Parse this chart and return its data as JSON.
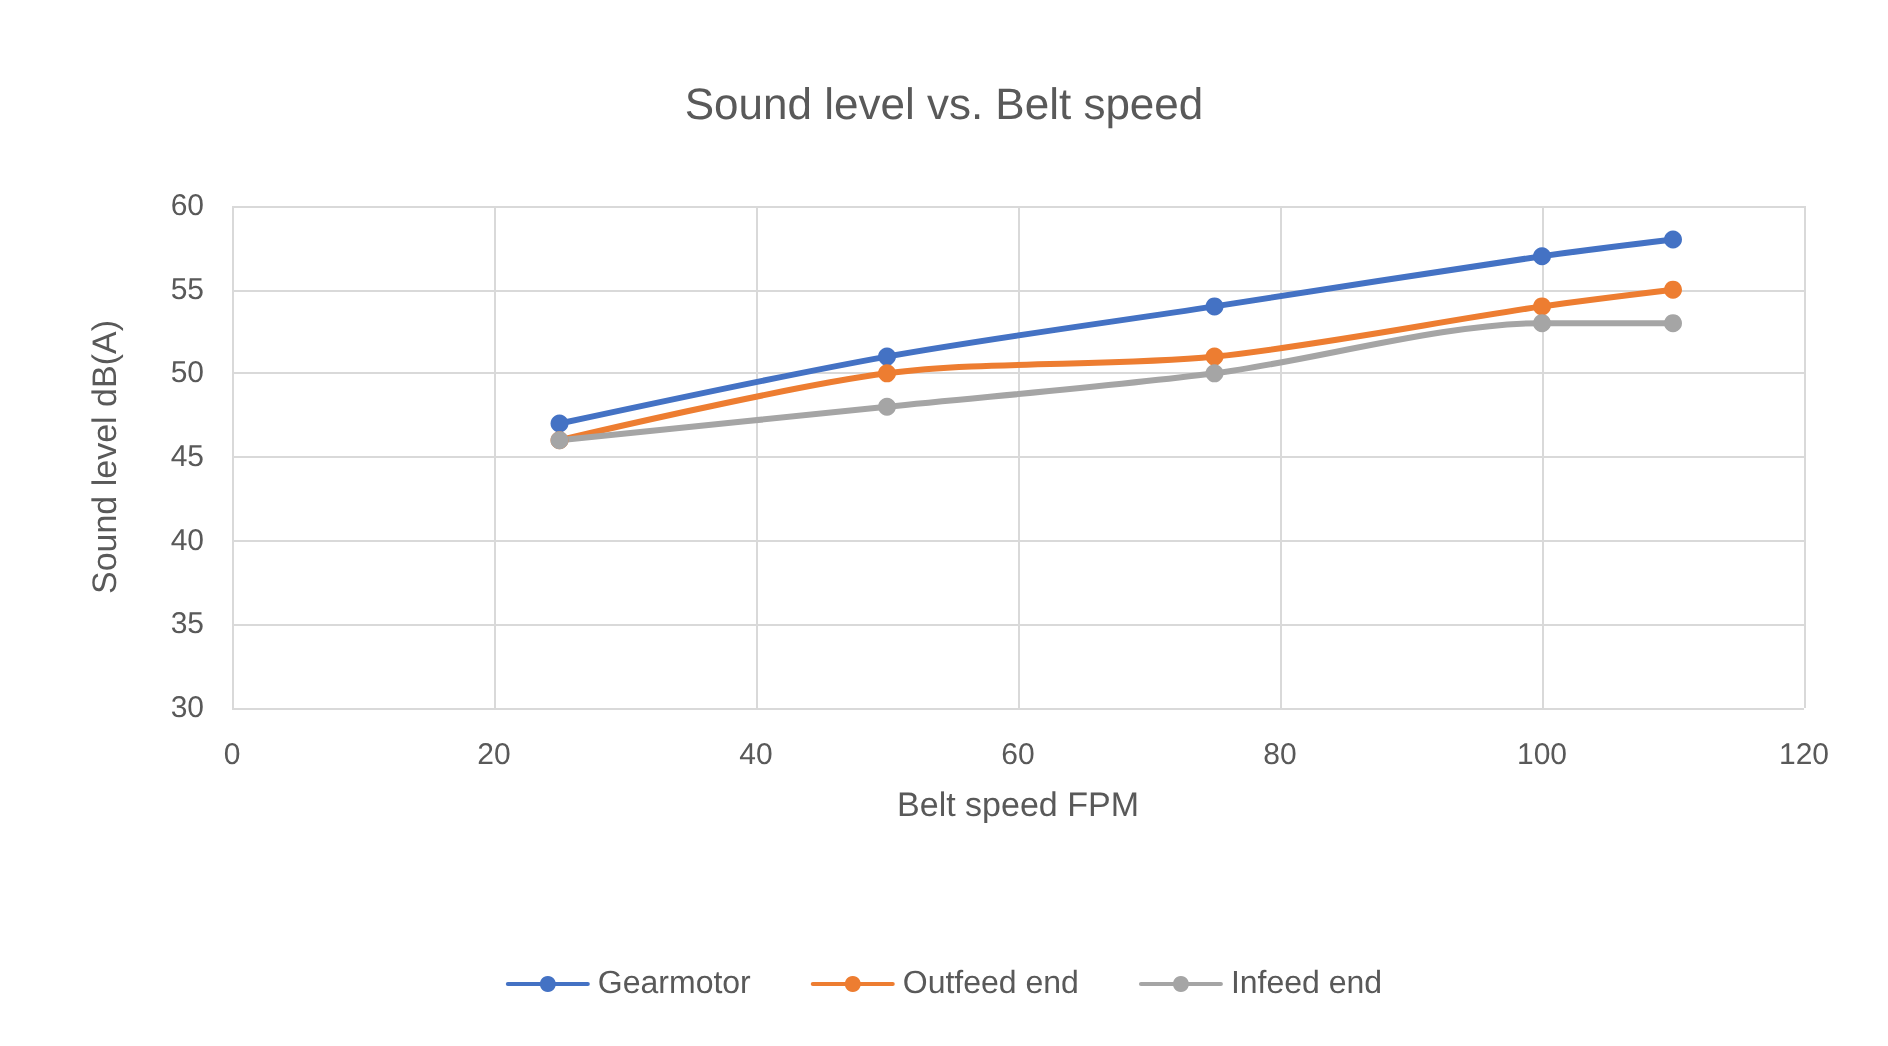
{
  "chart_data": {
    "type": "line",
    "title": "Sound level vs. Belt speed",
    "xlabel": "Belt speed FPM",
    "ylabel": "Sound level dB(A)",
    "x": [
      25,
      50,
      75,
      100,
      110
    ],
    "series": [
      {
        "name": "Gearmotor",
        "color": "#4472c4",
        "values": [
          47,
          51,
          54,
          57,
          58
        ]
      },
      {
        "name": "Outfeed end",
        "color": "#ed7d31",
        "values": [
          46,
          50,
          51,
          54,
          55
        ]
      },
      {
        "name": "Infeed end",
        "color": "#a5a5a5",
        "values": [
          46,
          48,
          50,
          53,
          53
        ]
      }
    ],
    "xlim": [
      0,
      120
    ],
    "xticks": [
      0,
      20,
      40,
      60,
      80,
      100,
      120
    ],
    "ylim": [
      30,
      60
    ],
    "yticks": [
      30,
      35,
      40,
      45,
      50,
      55,
      60
    ],
    "grid": true,
    "legend": "bottom",
    "marker": "circle",
    "line_style": "solid"
  }
}
